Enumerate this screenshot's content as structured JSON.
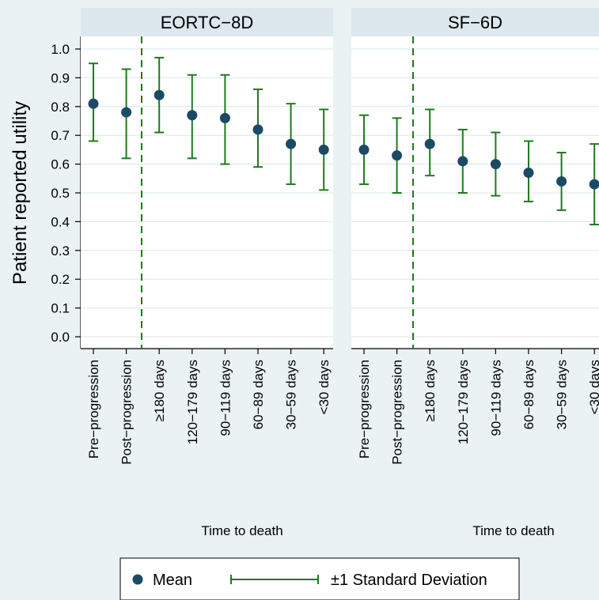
{
  "chart_data": {
    "type": "scatter",
    "ylabel": "Patient reported utility",
    "ylim": [
      0.0,
      1.0
    ],
    "yticks": [
      "0.0",
      "0.1",
      "0.2",
      "0.3",
      "0.4",
      "0.5",
      "0.6",
      "0.7",
      "0.8",
      "0.9",
      "1.0"
    ],
    "categories": [
      "Pre−progression",
      "Post−progression",
      "≥180 days",
      "120−179 days",
      "90−119 days",
      "60−89 days",
      "30−59 days",
      "<30 days"
    ],
    "grid": true,
    "reference_line": "dashed vertical line between Post−progression and ≥180 days",
    "colors": {
      "marker": "#1a4a66",
      "error_bar": "#1f7a1f",
      "reference_line": "#1f7a1f",
      "strip_background": "#dce8ee",
      "outer_background": "#eaf2f3",
      "grid": "#dce6e9"
    },
    "panels": [
      {
        "title": "EORTC−8D",
        "xlabel": "Time to death",
        "mean": [
          0.81,
          0.78,
          0.84,
          0.77,
          0.76,
          0.72,
          0.67,
          0.65
        ],
        "lower": [
          0.68,
          0.62,
          0.71,
          0.62,
          0.6,
          0.59,
          0.53,
          0.51
        ],
        "upper": [
          0.95,
          0.93,
          0.97,
          0.91,
          0.91,
          0.86,
          0.81,
          0.79
        ]
      },
      {
        "title": "SF−6D",
        "xlabel": "Time to death",
        "mean": [
          0.65,
          0.63,
          0.67,
          0.61,
          0.6,
          0.57,
          0.54,
          0.53
        ],
        "lower": [
          0.53,
          0.5,
          0.56,
          0.5,
          0.49,
          0.47,
          0.44,
          0.39
        ],
        "upper": [
          0.77,
          0.76,
          0.79,
          0.72,
          0.71,
          0.68,
          0.64,
          0.67
        ]
      }
    ],
    "legend": {
      "position": "bottom",
      "items": [
        {
          "label": "Mean",
          "symbol": "dot"
        },
        {
          "label": "±1 Standard Deviation",
          "symbol": "errorbar"
        }
      ]
    }
  }
}
